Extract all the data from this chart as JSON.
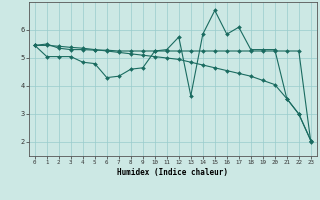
{
  "xlabel": "Humidex (Indice chaleur)",
  "bg_color": "#cce8e4",
  "line_color": "#1a6b60",
  "grid_color": "#99cccc",
  "line1_y": [
    5.45,
    5.5,
    5.35,
    5.3,
    5.3,
    5.28,
    5.28,
    5.25,
    5.25,
    5.25,
    5.25,
    5.25,
    5.25,
    5.25,
    5.25,
    5.25,
    5.25,
    5.25,
    5.25,
    5.25,
    5.25,
    5.25,
    5.25,
    2.0
  ],
  "line2_y": [
    5.45,
    5.05,
    5.05,
    5.05,
    4.85,
    4.8,
    4.3,
    4.35,
    4.6,
    4.65,
    5.25,
    5.3,
    5.75,
    3.65,
    5.85,
    6.7,
    5.85,
    6.1,
    5.3,
    5.3,
    5.3,
    3.55,
    3.0,
    2.05
  ],
  "line3_y": [
    5.45,
    5.45,
    5.42,
    5.38,
    5.35,
    5.3,
    5.25,
    5.2,
    5.15,
    5.1,
    5.05,
    5.0,
    4.95,
    4.85,
    4.75,
    4.65,
    4.55,
    4.45,
    4.35,
    4.2,
    4.05,
    3.55,
    3.0,
    2.05
  ],
  "ylim": [
    1.5,
    7.0
  ],
  "xlim": [
    -0.5,
    23.5
  ],
  "yticks": [
    2,
    3,
    4,
    5,
    6
  ],
  "xticks": [
    0,
    1,
    2,
    3,
    4,
    5,
    6,
    7,
    8,
    9,
    10,
    11,
    12,
    13,
    14,
    15,
    16,
    17,
    18,
    19,
    20,
    21,
    22,
    23
  ],
  "xtick_labels": [
    "0",
    "1",
    "2",
    "3",
    "4",
    "5",
    "6",
    "7",
    "8",
    "9",
    "10",
    "11",
    "12",
    "13",
    "14",
    "15",
    "16",
    "17",
    "18",
    "19",
    "20",
    "21",
    "22",
    "23"
  ],
  "markersize": 2.0,
  "linewidth": 0.8
}
